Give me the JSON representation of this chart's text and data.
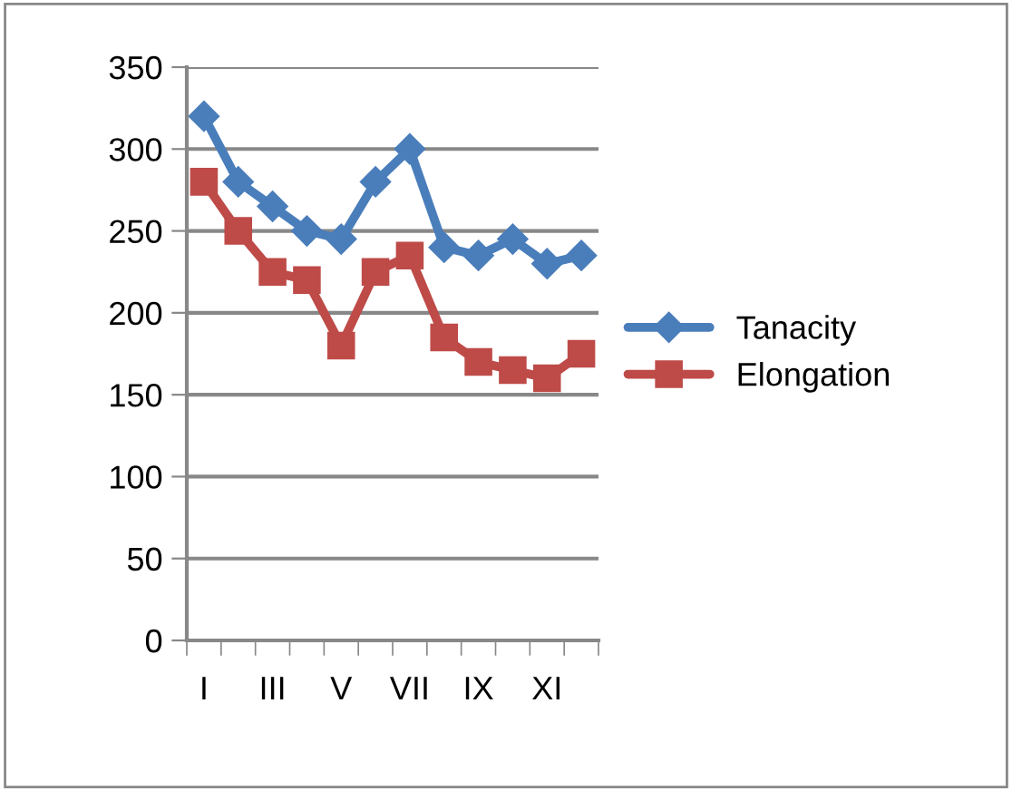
{
  "chart_data": {
    "type": "line",
    "categories": [
      "I",
      null,
      "III",
      null,
      "V",
      null,
      "VII",
      null,
      "IX",
      null,
      "XI",
      null
    ],
    "series": [
      {
        "name": "Tanacity",
        "color": "#4a7ebb",
        "marker": "diamond",
        "values": [
          320,
          280,
          265,
          250,
          245,
          280,
          300,
          240,
          235,
          245,
          230,
          235
        ]
      },
      {
        "name": "Elongation",
        "color": "#be4b48",
        "marker": "square",
        "values": [
          280,
          250,
          225,
          220,
          180,
          225,
          235,
          185,
          170,
          165,
          160,
          175
        ]
      }
    ],
    "ylim": [
      0,
      350
    ],
    "yticks": [
      0,
      50,
      100,
      150,
      200,
      250,
      300,
      350
    ],
    "grid": "y",
    "legend": "right"
  }
}
